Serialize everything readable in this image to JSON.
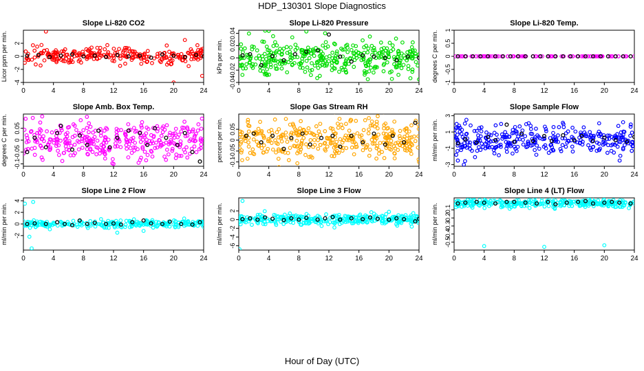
{
  "page": {
    "title": "HDP_130301  Slope Diagnostics",
    "x_axis_title": "Hour of Day (UTC)"
  },
  "chart_data": [
    {
      "type": "scatter",
      "title": "Slope Li-820 CO2",
      "ylabel": "Licor ppm per min.",
      "xlim": [
        0,
        24
      ],
      "xticks": [
        0,
        4,
        8,
        12,
        16,
        20,
        24
      ],
      "ylim": [
        -4,
        4
      ],
      "yticks": [
        -4,
        -2,
        0,
        2
      ],
      "color": "#ff0000",
      "dense": {
        "center": 0.1,
        "spread": 0.6,
        "count": 260
      },
      "outliers": [
        [
          3,
          3.8
        ],
        [
          20,
          -4
        ],
        [
          23.8,
          -3
        ],
        [
          21.5,
          2.5
        ],
        [
          22,
          -1.5
        ]
      ],
      "black_points": [
        [
          0.5,
          0.1
        ],
        [
          2,
          0.2
        ],
        [
          3.5,
          -0.1
        ],
        [
          5,
          0.1
        ],
        [
          6.5,
          0.3
        ],
        [
          8,
          0
        ],
        [
          9.5,
          0.1
        ],
        [
          11,
          -0.1
        ],
        [
          12.5,
          0.2
        ],
        [
          14,
          0
        ],
        [
          15.5,
          0.1
        ],
        [
          17,
          -0.2
        ],
        [
          18.5,
          0.3
        ],
        [
          20,
          0.1
        ],
        [
          21.5,
          -0.1
        ],
        [
          23,
          0.2
        ],
        [
          24,
          0
        ]
      ]
    },
    {
      "type": "scatter",
      "title": "Slope Li-820 Pressure",
      "ylabel": "kPa per min.",
      "xlim": [
        0,
        24
      ],
      "xticks": [
        0,
        4,
        8,
        12,
        16,
        20,
        24
      ],
      "ylim": [
        -0.04,
        0.045
      ],
      "yticks": [
        -0.04,
        -0.02,
        0.0,
        0.02,
        0.04
      ],
      "color": "#00dd00",
      "dense": {
        "center": 0.0,
        "spread": 0.014,
        "count": 380
      },
      "outliers": [
        [
          9,
          0.043
        ],
        [
          11.5,
          0.04
        ],
        [
          24,
          -0.035
        ],
        [
          0.3,
          0.022
        ]
      ],
      "black_points": [
        [
          0.5,
          0.004
        ],
        [
          1.5,
          0.006
        ],
        [
          3,
          -0.012
        ],
        [
          4.5,
          0.003
        ],
        [
          6,
          -0.004
        ],
        [
          7.5,
          0.006
        ],
        [
          9,
          0.01
        ],
        [
          10.5,
          0.012
        ],
        [
          12,
          0.038
        ],
        [
          13.5,
          0.002
        ],
        [
          15,
          -0.006
        ],
        [
          16.5,
          0.004
        ],
        [
          18,
          0.002
        ],
        [
          19.5,
          0
        ],
        [
          21,
          -0.004
        ],
        [
          22.5,
          0.002
        ],
        [
          24,
          0
        ]
      ]
    },
    {
      "type": "scatter",
      "title": "Slope Li-820 Temp.",
      "ylabel": "degrees C per min.",
      "xlim": [
        0,
        24
      ],
      "xticks": [
        0,
        4,
        8,
        12,
        16,
        20,
        24
      ],
      "ylim": [
        -1.0,
        1.0
      ],
      "yticks": [
        -1.0,
        -0.5,
        0.0,
        0.5,
        1.0
      ],
      "color": "#ff00ff",
      "dense": {
        "center": 0.0,
        "spread": 0.0,
        "count": 90
      },
      "outliers": [],
      "black_points": [
        [
          0.5,
          0
        ],
        [
          1.5,
          0
        ],
        [
          2.5,
          0
        ],
        [
          3.5,
          0
        ],
        [
          4.5,
          0
        ],
        [
          5.5,
          0
        ],
        [
          6.5,
          0
        ],
        [
          7.5,
          0
        ],
        [
          8.5,
          0
        ],
        [
          9.5,
          0
        ],
        [
          10.5,
          0
        ],
        [
          11.5,
          0
        ],
        [
          12.5,
          0
        ],
        [
          13.5,
          0
        ],
        [
          14.5,
          0
        ],
        [
          15.5,
          0
        ],
        [
          16.5,
          0
        ],
        [
          17.5,
          0
        ],
        [
          18.5,
          0
        ],
        [
          19.5,
          0
        ],
        [
          20.5,
          0
        ],
        [
          21.5,
          0
        ],
        [
          22.5,
          0
        ],
        [
          23.5,
          0
        ]
      ]
    },
    {
      "type": "scatter",
      "title": "Slope Amb. Box Temp.",
      "ylabel": "degrees C per min.",
      "xlim": [
        0,
        24
      ],
      "xticks": [
        0,
        4,
        8,
        12,
        16,
        20,
        24
      ],
      "ylim": [
        -0.11,
        0.11
      ],
      "yticks": [
        -0.1,
        -0.05,
        0.0,
        0.05
      ],
      "color": "#ff00ff",
      "dense": {
        "center": 0.0,
        "spread": 0.04,
        "count": 340
      },
      "outliers": [
        [
          0.3,
          0.09
        ],
        [
          2.5,
          0.1
        ],
        [
          12,
          -0.1
        ]
      ],
      "black_points": [
        [
          0.5,
          -0.05
        ],
        [
          1.5,
          0.01
        ],
        [
          3,
          -0.03
        ],
        [
          4.5,
          0.03
        ],
        [
          5,
          0.06
        ],
        [
          6.5,
          -0.04
        ],
        [
          7.5,
          0.02
        ],
        [
          8.5,
          -0.02
        ],
        [
          10,
          0.04
        ],
        [
          11.5,
          -0.03
        ],
        [
          12.5,
          0.01
        ],
        [
          14,
          0.04
        ],
        [
          15.5,
          0.03
        ],
        [
          16.5,
          -0.02
        ],
        [
          17.5,
          0.05
        ],
        [
          19,
          0.01
        ],
        [
          20.5,
          -0.02
        ],
        [
          21.5,
          0.03
        ],
        [
          22.5,
          -0.05
        ],
        [
          23.5,
          -0.09
        ]
      ]
    },
    {
      "type": "scatter",
      "title": "Slope Gas Stream RH",
      "ylabel": "percent per min.",
      "xlim": [
        0,
        24
      ],
      "xticks": [
        0,
        4,
        8,
        12,
        16,
        20,
        24
      ],
      "ylim": [
        -0.12,
        0.12
      ],
      "yticks": [
        -0.1,
        -0.05,
        0.0,
        0.05
      ],
      "color": "#ffa500",
      "dense": {
        "center": 0.0,
        "spread": 0.045,
        "count": 360
      },
      "outliers": [
        [
          18.5,
          0.11
        ],
        [
          24,
          -0.1
        ]
      ],
      "black_points": [
        [
          1,
          0.02
        ],
        [
          2,
          0.03
        ],
        [
          3,
          -0.01
        ],
        [
          4.5,
          0.02
        ],
        [
          6,
          -0.04
        ],
        [
          7,
          0.01
        ],
        [
          8.5,
          0.03
        ],
        [
          9.5,
          -0.02
        ],
        [
          11,
          0.01
        ],
        [
          12.5,
          0.02
        ],
        [
          13.5,
          -0.03
        ],
        [
          15,
          0.02
        ],
        [
          16.5,
          -0.01
        ],
        [
          18,
          0.03
        ],
        [
          19.5,
          -0.02
        ],
        [
          20.5,
          0.02
        ],
        [
          22,
          -0.01
        ],
        [
          23.5,
          0.08
        ]
      ]
    },
    {
      "type": "scatter",
      "title": "Slope Sample Flow",
      "ylabel": "ml/min per min.",
      "xlim": [
        0,
        24
      ],
      "xticks": [
        0,
        4,
        8,
        12,
        16,
        20,
        24
      ],
      "ylim": [
        -3.2,
        3.2
      ],
      "yticks": [
        -3,
        -1,
        1,
        3
      ],
      "color": "#0000ff",
      "dense": {
        "center": 0.0,
        "spread": 0.9,
        "count": 320
      },
      "outliers": [
        [
          0.5,
          -2.5
        ],
        [
          1.3,
          -3
        ],
        [
          0.8,
          1.5
        ],
        [
          22.5,
          2.2
        ],
        [
          2.2,
          1.8
        ]
      ],
      "black_points": [
        [
          0.5,
          -0.4
        ],
        [
          1.5,
          0.1
        ],
        [
          3,
          -0.3
        ],
        [
          4.5,
          0.4
        ],
        [
          5.5,
          0
        ],
        [
          7,
          1.9
        ],
        [
          8,
          -0.2
        ],
        [
          9,
          0.8
        ],
        [
          10.5,
          -0.1
        ],
        [
          12,
          0.5
        ],
        [
          13,
          -0.1
        ],
        [
          14.5,
          0.6
        ],
        [
          16,
          0
        ],
        [
          17,
          0.5
        ],
        [
          18.5,
          -0.1
        ],
        [
          20,
          0.3
        ],
        [
          21.5,
          0
        ],
        [
          23,
          -0.2
        ],
        [
          24,
          0.4
        ]
      ]
    },
    {
      "type": "scatter",
      "title": "Slope Line 2 Flow",
      "ylabel": "ml/min per min.",
      "xlim": [
        0,
        24
      ],
      "xticks": [
        0,
        4,
        8,
        12,
        16,
        20,
        24
      ],
      "ylim": [
        -4.5,
        4.5
      ],
      "yticks": [
        -2,
        0,
        2,
        4
      ],
      "color": "#00ffff",
      "dense": {
        "center": 0.0,
        "spread": 0.3,
        "count": 260
      },
      "outliers": [
        [
          0.2,
          3.5
        ],
        [
          1.3,
          3.8
        ],
        [
          1.1,
          -4.2
        ],
        [
          0.8,
          -2.2
        ],
        [
          12.5,
          -1.5
        ],
        [
          16,
          -1.2
        ]
      ],
      "black_points": [
        [
          0.5,
          0
        ],
        [
          1.5,
          0.1
        ],
        [
          3,
          0
        ],
        [
          4.5,
          0.3
        ],
        [
          5.5,
          0
        ],
        [
          6.5,
          -0.2
        ],
        [
          7.5,
          0.6
        ],
        [
          8.5,
          0
        ],
        [
          9.5,
          0.2
        ],
        [
          11,
          0
        ],
        [
          12,
          0.1
        ],
        [
          13,
          -0.1
        ],
        [
          14.5,
          0.3
        ],
        [
          16,
          0.6
        ],
        [
          17,
          0.1
        ],
        [
          18.5,
          0
        ],
        [
          19.5,
          0.4
        ],
        [
          21,
          0
        ],
        [
          22.5,
          -0.1
        ],
        [
          23.5,
          0.3
        ]
      ]
    },
    {
      "type": "scatter",
      "title": "Slope Line 3 Flow",
      "ylabel": "ml/min per min.",
      "xlim": [
        0,
        24
      ],
      "xticks": [
        0,
        4,
        8,
        12,
        16,
        20,
        24
      ],
      "ylim": [
        -7,
        5
      ],
      "yticks": [
        -6,
        -4,
        -2,
        0,
        2
      ],
      "color": "#00ffff",
      "dense": {
        "center": 0.0,
        "spread": 0.6,
        "count": 320
      },
      "outliers": [
        [
          0.5,
          4.3
        ],
        [
          0.1,
          -6.8
        ],
        [
          20,
          1.8
        ]
      ],
      "black_points": [
        [
          0.5,
          0.1
        ],
        [
          1.5,
          0.3
        ],
        [
          2.5,
          0
        ],
        [
          3.5,
          0.5
        ],
        [
          4.5,
          0.2
        ],
        [
          6,
          -0.1
        ],
        [
          7,
          0.3
        ],
        [
          8,
          0
        ],
        [
          9,
          0.4
        ],
        [
          10.5,
          0
        ],
        [
          11.5,
          0.3
        ],
        [
          12.5,
          0.6
        ],
        [
          13.5,
          0
        ],
        [
          15,
          0.3
        ],
        [
          16.5,
          0.1
        ],
        [
          17.5,
          0.5
        ],
        [
          18.5,
          0.2
        ],
        [
          20,
          0
        ],
        [
          21,
          0.3
        ],
        [
          22,
          0.1
        ],
        [
          23.5,
          -0.4
        ],
        [
          24,
          0.2
        ]
      ]
    },
    {
      "type": "scatter",
      "title": "Slope Line 4 (LT) Flow",
      "ylabel": "ml/min per min.",
      "xlim": [
        0,
        24
      ],
      "xticks": [
        0,
        4,
        8,
        12,
        16,
        20,
        24
      ],
      "ylim": [
        -0.6,
        0.05
      ],
      "yticks": [
        -0.5,
        -0.4,
        -0.3,
        -0.2,
        -0.1
      ],
      "color": "#00ffff",
      "dense": {
        "center": -0.02,
        "spread": 0.025,
        "count": 300
      },
      "outliers": [
        [
          4,
          -0.55
        ],
        [
          12,
          -0.56
        ],
        [
          20,
          -0.54
        ]
      ],
      "black_points": [
        [
          0.5,
          -0.02
        ],
        [
          1.5,
          -0.01
        ],
        [
          3,
          0
        ],
        [
          4,
          -0.01
        ],
        [
          5.5,
          -0.02
        ],
        [
          7,
          0
        ],
        [
          8,
          0
        ],
        [
          9.5,
          -0.01
        ],
        [
          11,
          -0.02
        ],
        [
          12.5,
          0
        ],
        [
          13.5,
          -0.03
        ],
        [
          15,
          -0.01
        ],
        [
          16.5,
          0
        ],
        [
          17.5,
          0.01
        ],
        [
          18.5,
          -0.02
        ],
        [
          20,
          -0.01
        ],
        [
          21,
          0
        ],
        [
          22,
          -0.01
        ],
        [
          23.5,
          -0.02
        ]
      ]
    }
  ]
}
